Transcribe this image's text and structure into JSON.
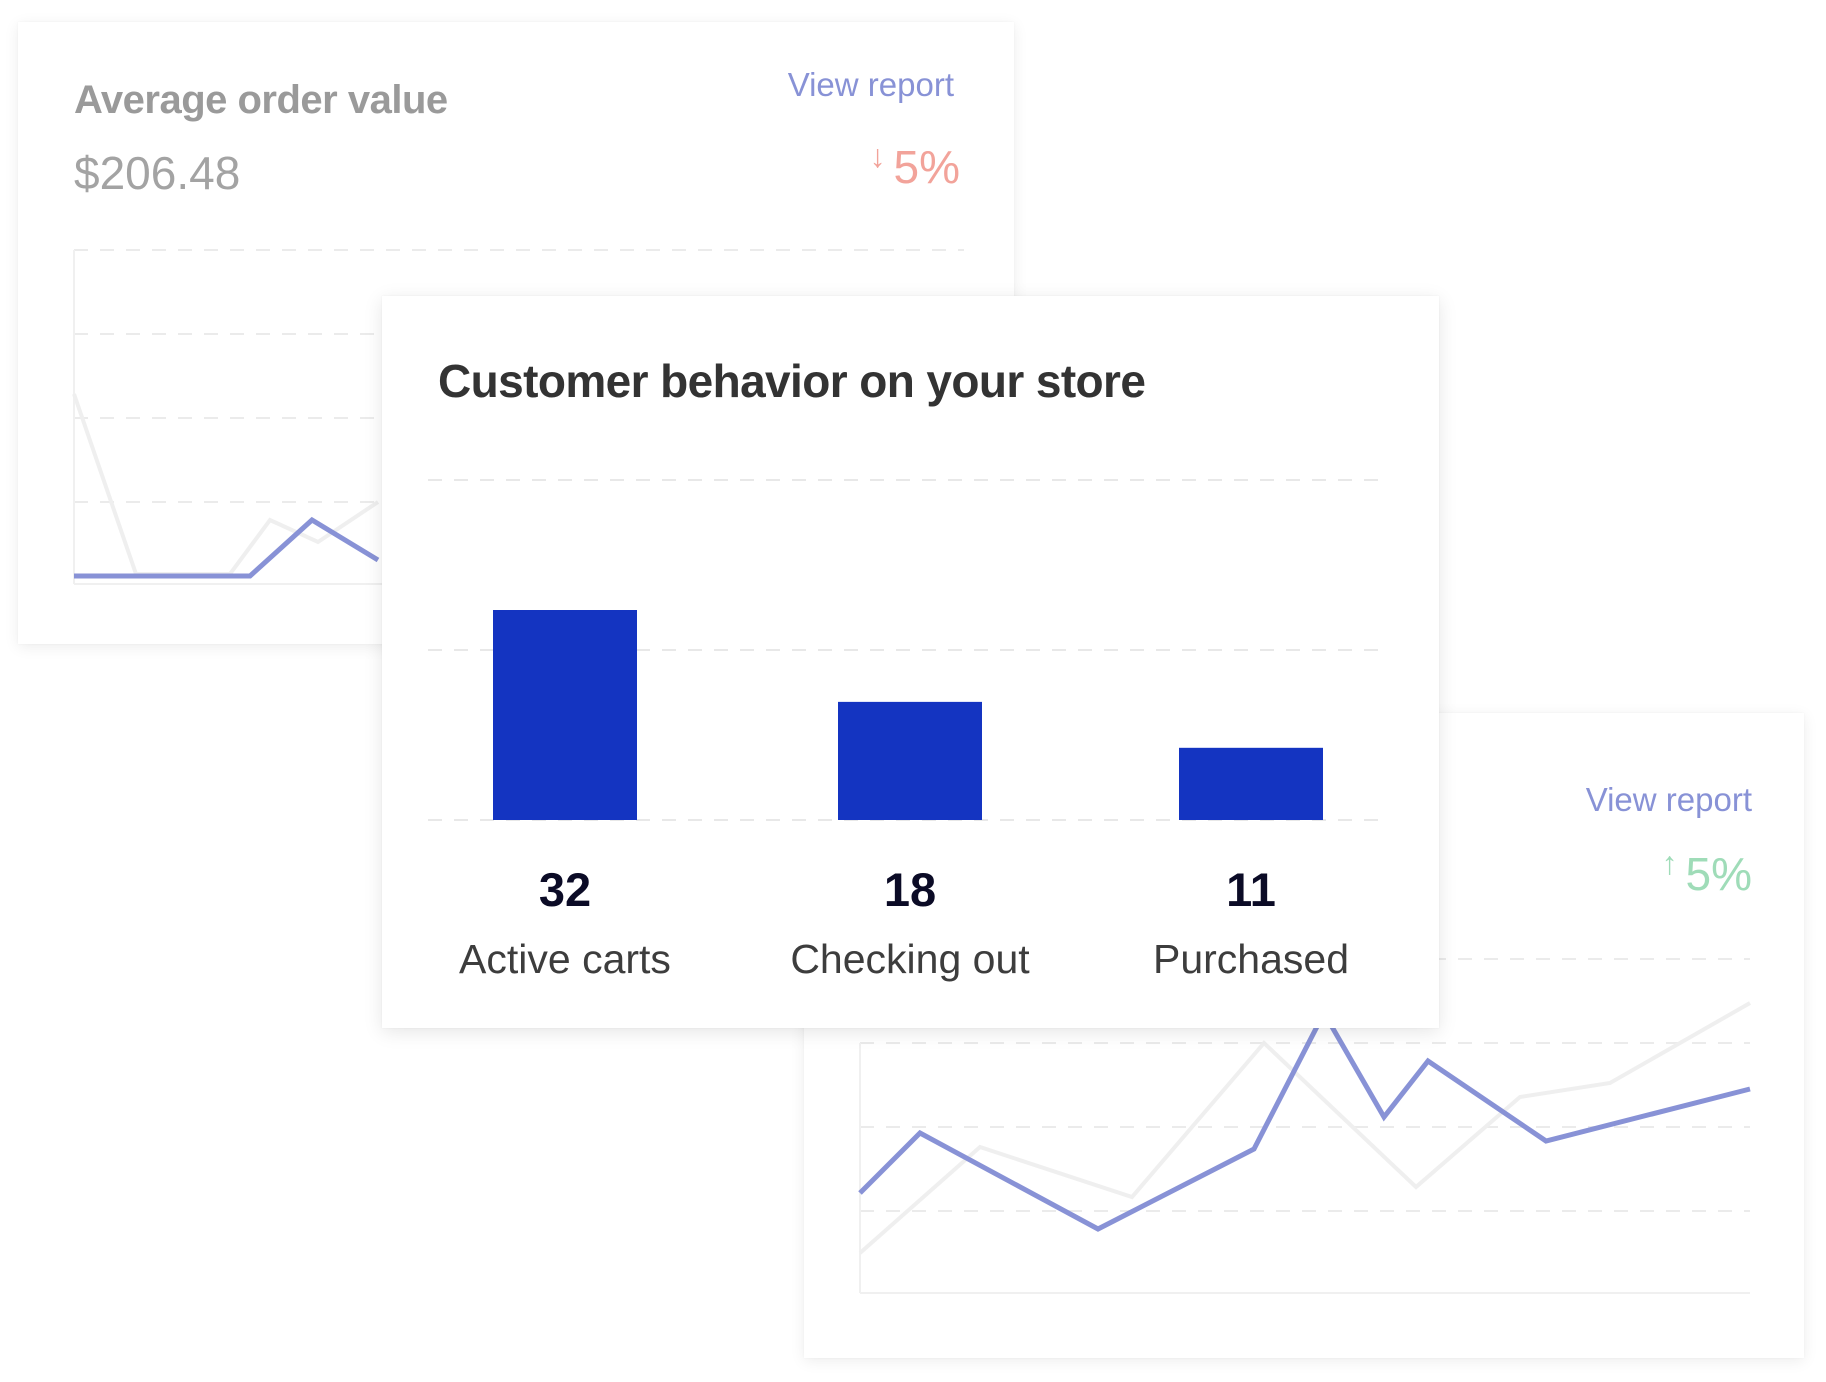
{
  "aov_card": {
    "title": "Average order value",
    "value": "$206.48",
    "view_report": "View report",
    "delta_arrow": "↓",
    "delta": "5%",
    "delta_color": "#f2a39a",
    "line_color": "#8892d6"
  },
  "trend_card": {
    "view_report": "View report",
    "delta_arrow": "↑",
    "delta": "5%",
    "delta_color": "#9fdcb8",
    "line_color": "#8892d6"
  },
  "chart_data": {
    "type": "bar",
    "title": "Customer behavior on your store",
    "categories": [
      "Active carts",
      "Checking out",
      "Purchased"
    ],
    "values": [
      32,
      18,
      11
    ],
    "bar_color": "#1434c1",
    "grid": true,
    "ylim": [
      0,
      50
    ]
  }
}
